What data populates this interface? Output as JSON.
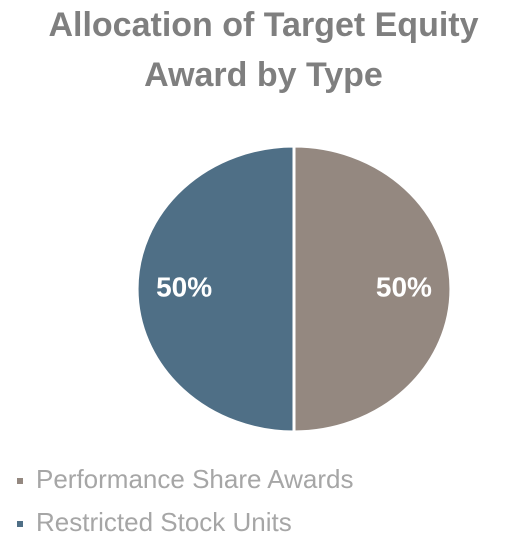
{
  "chart_data": {
    "type": "pie",
    "title": "Allocation of Target Equity Award by Type",
    "categories": [
      "Performance Share Awards",
      "Restricted Stock Units"
    ],
    "values": [
      50,
      50
    ],
    "value_labels": [
      "50%",
      "50%"
    ],
    "colors": [
      "#948880",
      "#4f6f86"
    ]
  }
}
